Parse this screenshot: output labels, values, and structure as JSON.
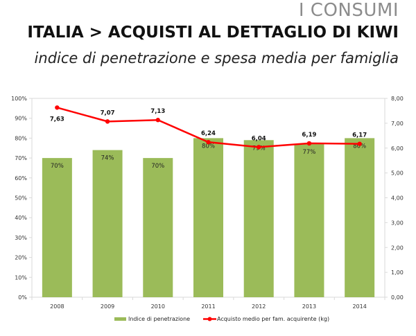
{
  "header": {
    "section": "I CONSUMI",
    "title": "ITALIA > ACQUISTI AL DETTAGLIO DI KIWI",
    "subtitle": "indice di penetrazione e spesa media per famiglia"
  },
  "colors": {
    "bar": "#9bbb59",
    "line": "#ff0000",
    "grid": "#d9d9d9"
  },
  "chart_data": {
    "type": "bar+line",
    "categories": [
      "2008",
      "2009",
      "2010",
      "2011",
      "2012",
      "2013",
      "2014"
    ],
    "series": [
      {
        "name": "Indice di penetrazione",
        "type": "bar",
        "axis": "left",
        "values": [
          70,
          74,
          70,
          80,
          79,
          77,
          80
        ],
        "labels": [
          "70%",
          "74%",
          "70%",
          "80%",
          "79%",
          "77%",
          "80%"
        ]
      },
      {
        "name": "Acquisto medio per fam. acquirente (kg)",
        "type": "line",
        "axis": "right",
        "values": [
          7.63,
          7.07,
          7.13,
          6.24,
          6.04,
          6.19,
          6.17
        ],
        "labels": [
          "7,63",
          "7,07",
          "7,13",
          "6,24",
          "6,04",
          "6,19",
          "6,17"
        ]
      }
    ],
    "y_left": {
      "range": [
        0,
        100
      ],
      "ticks": [
        "0%",
        "10%",
        "20%",
        "30%",
        "40%",
        "50%",
        "60%",
        "70%",
        "80%",
        "90%",
        "100%"
      ]
    },
    "y_right": {
      "range": [
        0,
        8
      ],
      "ticks": [
        "0,00",
        "1,00",
        "2,00",
        "3,00",
        "4,00",
        "5,00",
        "6,00",
        "7,00",
        "8,00"
      ]
    },
    "legend": "bottom",
    "grid": "top-line only"
  }
}
